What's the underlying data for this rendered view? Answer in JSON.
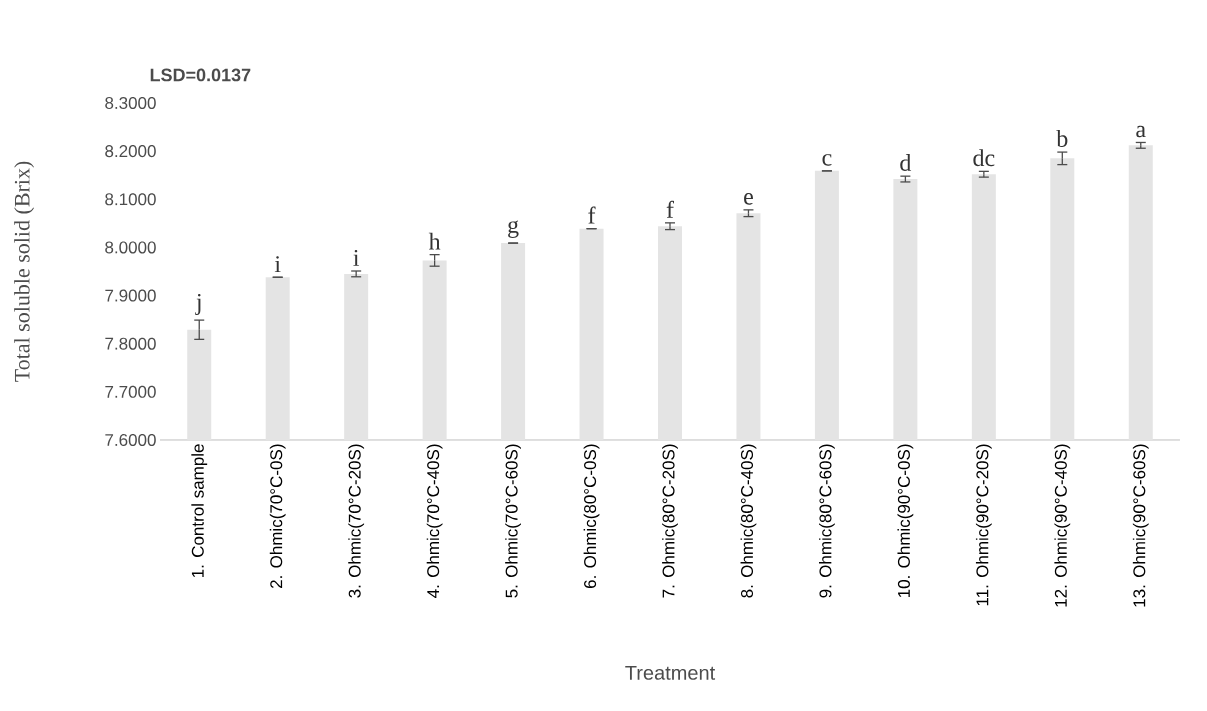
{
  "chart_data": {
    "type": "bar",
    "xlabel": "Treatment",
    "ylabel": "Total soluble solid (Brix)",
    "annotations": [
      "LSD=0.0137"
    ],
    "categories": [
      "1. Control sample",
      "2. Ohmic(70°C-0S)",
      "3. Ohmic(70°C-20S)",
      "4. Ohmic(70°C-40S)",
      "5. Ohmic(70°C-60S)",
      "6. Ohmic(80°C-0S)",
      "7. Ohmic(80°C-20S)",
      "8. Ohmic(80°C-40S)",
      "9. Ohmic(80°C-60S)",
      "10. Ohmic(90°C-0S)",
      "11. Ohmic(90°C-20S)",
      "12. Ohmic(90°C-40S)",
      "13. Ohmic(90°C-60S)"
    ],
    "values": [
      7.829,
      7.938,
      7.945,
      7.973,
      8.009,
      8.039,
      8.044,
      8.071,
      8.159,
      8.142,
      8.152,
      8.185,
      8.212
    ],
    "errors": [
      0.02,
      0,
      0.006,
      0.012,
      0,
      0,
      0.007,
      0.007,
      0,
      0.006,
      0.006,
      0.013,
      0.006
    ],
    "value_labels": [
      "j",
      "i",
      "i",
      "h",
      "g",
      "f",
      "f",
      "e",
      "c",
      "d",
      "dc",
      "b",
      "a"
    ],
    "color": "#e4e4e4",
    "ylim": [
      7.6,
      8.3
    ],
    "yticks": [
      {
        "value": 7.6,
        "label": "7.6000"
      },
      {
        "value": 7.7,
        "label": "7.7000"
      },
      {
        "value": 7.8,
        "label": "7.8000"
      },
      {
        "value": 7.9,
        "label": "7.9000"
      },
      {
        "value": 8.0,
        "label": "8.0000"
      },
      {
        "value": 8.1,
        "label": "8.1000"
      },
      {
        "value": 8.2,
        "label": "8.2000"
      },
      {
        "value": 8.3,
        "label": "8.3000"
      }
    ]
  }
}
